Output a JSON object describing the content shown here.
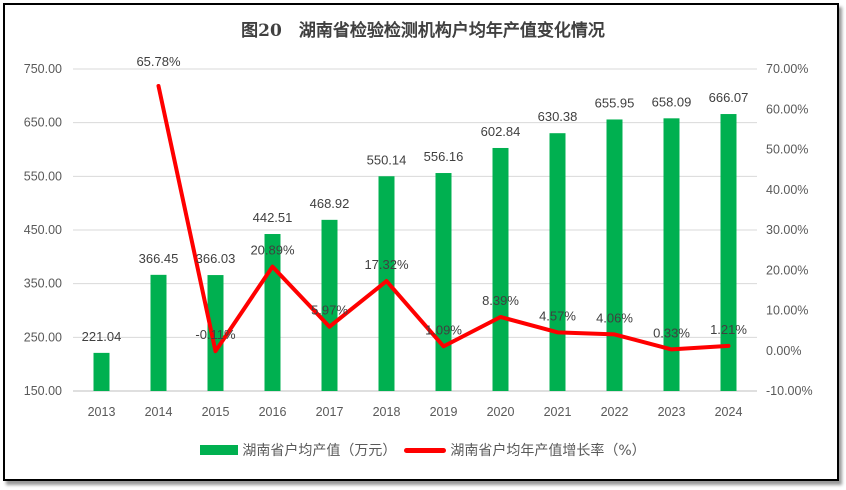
{
  "chart_data": {
    "type": "bar+line",
    "title": "图20　湖南省检验检测机构户均年产值变化情况",
    "categories": [
      "2013",
      "2014",
      "2015",
      "2016",
      "2017",
      "2018",
      "2019",
      "2020",
      "2021",
      "2022",
      "2023",
      "2024"
    ],
    "series": [
      {
        "name": "湖南省户均产值（万元）",
        "type": "bar",
        "axis": "left",
        "color": "#00B050",
        "values": [
          221.04,
          366.45,
          366.03,
          442.51,
          468.92,
          550.14,
          556.16,
          602.84,
          630.38,
          655.95,
          658.09,
          666.07
        ],
        "labels": [
          "221.04",
          "366.45",
          "366.03",
          "442.51",
          "468.92",
          "550.14",
          "556.16",
          "602.84",
          "630.38",
          "655.95",
          "658.09",
          "666.07"
        ]
      },
      {
        "name": "湖南省户均年产值增长率（%）",
        "type": "line",
        "axis": "right",
        "color": "#FF0000",
        "values": [
          null,
          65.78,
          -0.11,
          20.89,
          5.97,
          17.32,
          1.09,
          8.39,
          4.57,
          4.06,
          0.33,
          1.21
        ],
        "labels": [
          "",
          "65.78%",
          "-0.11%",
          "20.89%",
          "5.97%",
          "17.32%",
          "1.09%",
          "8.39%",
          "4.57%",
          "4.06%",
          "0.33%",
          "1.21%"
        ]
      }
    ],
    "y_left": {
      "lim": [
        150,
        750
      ],
      "ticks": [
        "150.00",
        "250.00",
        "350.00",
        "450.00",
        "550.00",
        "650.00",
        "750.00"
      ]
    },
    "y_right": {
      "lim": [
        -10,
        70
      ],
      "ticks": [
        "-10.00%",
        "0.00%",
        "10.00%",
        "20.00%",
        "30.00%",
        "40.00%",
        "50.00%",
        "60.00%",
        "70.00%"
      ]
    },
    "grid": true,
    "legend": "bottom"
  }
}
